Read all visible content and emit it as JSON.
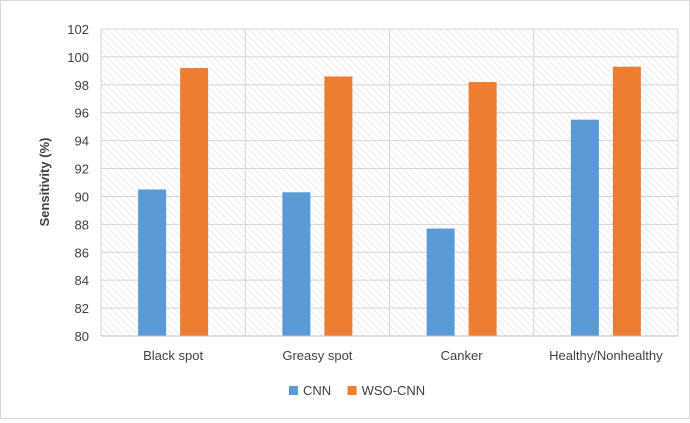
{
  "chart_data": {
    "type": "bar",
    "title": "",
    "xlabel": "",
    "ylabel": "Sensitivity (%)",
    "ylim": [
      80,
      102
    ],
    "yticks": [
      80,
      82,
      84,
      86,
      88,
      90,
      92,
      94,
      96,
      98,
      100,
      102
    ],
    "categories": [
      "Black spot",
      "Greasy spot",
      "Canker",
      "Healthy/Nonhealthy"
    ],
    "series": [
      {
        "name": "CNN",
        "color": "#5b9bd5",
        "values": [
          90.5,
          90.3,
          87.7,
          95.5
        ]
      },
      {
        "name": "WSO-CNN",
        "color": "#ed7d31",
        "values": [
          99.2,
          98.6,
          98.2,
          99.3
        ]
      }
    ],
    "grid": true,
    "legend_position": "bottom",
    "plot_background": "hatched"
  }
}
